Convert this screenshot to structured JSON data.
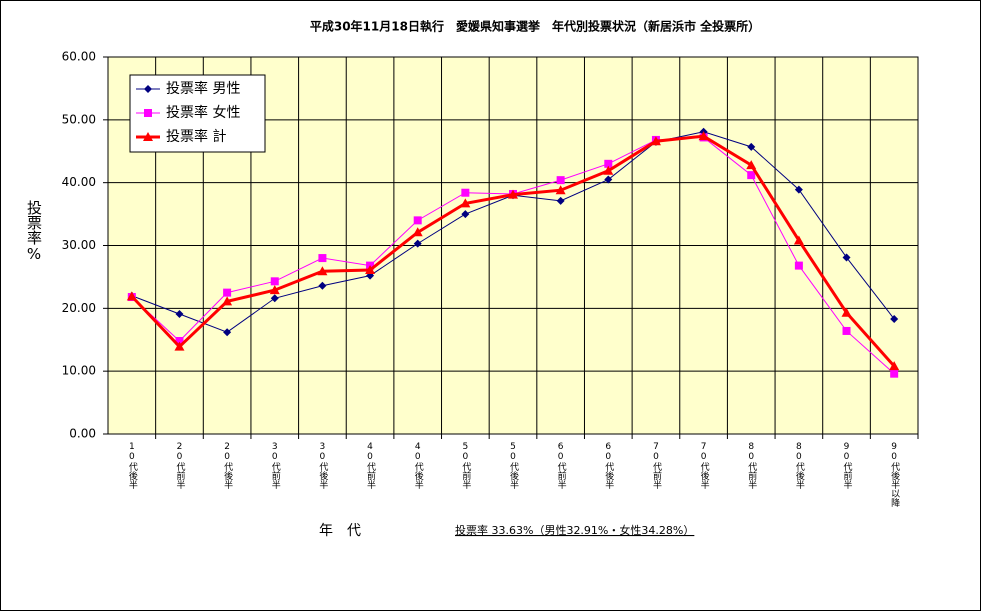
{
  "chart_data": {
    "type": "line",
    "title": "平成30年11月18日執行　愛媛県知事選挙　年代別投票状況（新居浜市 全投票所）",
    "y_label": "投票率%",
    "x_label": "年　代",
    "annotation": "投票率 33.63%（男性32.91%・女性34.28%）",
    "categories": [
      "10代後半",
      "20代前半",
      "20代後半",
      "30代前半",
      "30代後半",
      "40代前半",
      "40代後半",
      "50代前半",
      "50代後半",
      "60代前半",
      "60代後半",
      "70代前半",
      "70代後半",
      "80代前半",
      "80代後半",
      "90代前半",
      "90代後半以降"
    ],
    "series": [
      {
        "name": "投票率 男性",
        "color": "#000080",
        "marker": "diamond",
        "width": 1,
        "values": [
          22.0,
          19.1,
          16.2,
          21.6,
          23.6,
          25.2,
          30.3,
          35.0,
          38.0,
          37.1,
          40.5,
          46.5,
          48.1,
          45.7,
          38.9,
          28.1,
          18.3
        ]
      },
      {
        "name": "投票率 女性",
        "color": "#FF00FF",
        "marker": "square",
        "width": 1,
        "values": [
          21.8,
          14.8,
          22.5,
          24.3,
          28.0,
          26.8,
          34.0,
          38.4,
          38.2,
          40.4,
          43.0,
          46.8,
          47.2,
          41.2,
          26.8,
          16.4,
          9.6
        ]
      },
      {
        "name": "投票率 計",
        "color": "#FF0000",
        "marker": "triangle",
        "width": 3,
        "values": [
          21.9,
          13.9,
          21.1,
          22.9,
          25.9,
          26.1,
          32.1,
          36.7,
          38.1,
          38.8,
          41.9,
          46.6,
          47.4,
          42.8,
          30.8,
          19.3,
          10.8
        ]
      }
    ],
    "ylim": [
      0,
      60
    ],
    "yticks": [
      {
        "value": 0,
        "label": "0.00"
      },
      {
        "value": 10,
        "label": "10.00"
      },
      {
        "value": 20,
        "label": "20.00"
      },
      {
        "value": 30,
        "label": "30.00"
      },
      {
        "value": 40,
        "label": "40.00"
      },
      {
        "value": 50,
        "label": "50.00"
      },
      {
        "value": 60,
        "label": "60.00"
      }
    ],
    "grid": true,
    "plot_background": "#FFFFCC",
    "legend": "top-left"
  }
}
